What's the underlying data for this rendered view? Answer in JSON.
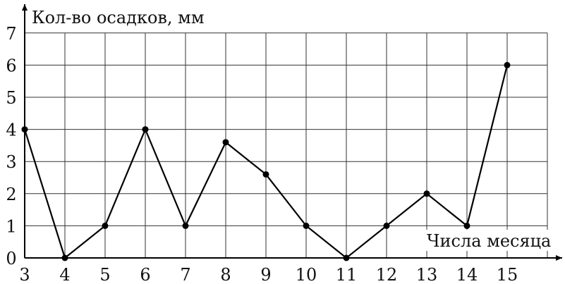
{
  "chart_data": {
    "type": "line",
    "title": "",
    "ylabel": "Кол-во осадков, мм",
    "xlabel": "Числа месяца",
    "x": [
      3,
      4,
      5,
      6,
      7,
      8,
      9,
      10,
      11,
      12,
      13,
      14,
      15
    ],
    "x_tick_labels": [
      "3",
      "4",
      "5",
      "6",
      "7",
      "8",
      "9",
      "10",
      "11",
      "12",
      "13",
      "14",
      "15"
    ],
    "y_tick_labels": [
      "0",
      "1",
      "2",
      "3",
      "4",
      "5",
      "6",
      "7"
    ],
    "series": [
      {
        "values": [
          4,
          0,
          1,
          4,
          1,
          3.6,
          2.6,
          1,
          0,
          1,
          2,
          1,
          6
        ]
      }
    ],
    "xlim": [
      3,
      16
    ],
    "ylim": [
      0,
      7
    ],
    "grid": true,
    "line_color": "#000000"
  }
}
